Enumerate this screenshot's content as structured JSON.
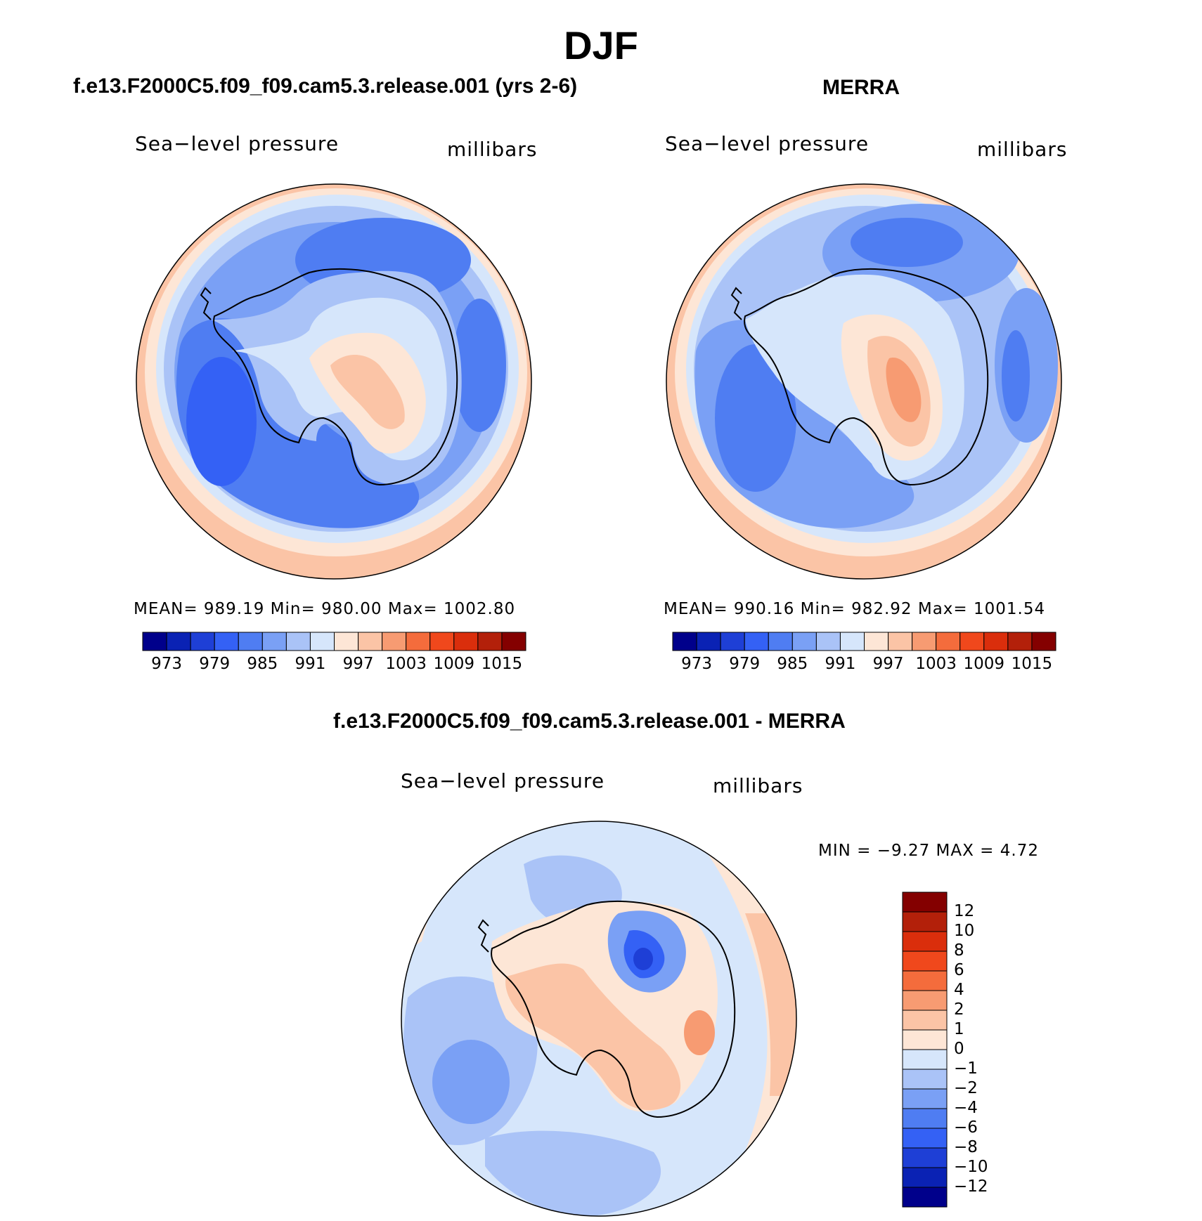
{
  "figure": {
    "season": "DJF",
    "panel1_title": "f.e13.F2000C5.f09_f09.cam5.3.release.001 (yrs 2-6)",
    "panel2_title": "MERRA",
    "diff_title": "f.e13.F2000C5.f09_f09.cam5.3.release.001 - MERRA"
  },
  "panels": [
    {
      "variable": "Sea−level pressure",
      "units": "millibars",
      "stats": "MEAN=  989.19    Min=  980.00    Max=  1002.80"
    },
    {
      "variable": "Sea−level pressure",
      "units": "millibars",
      "stats": "MEAN=  990.16    Min=  982.92    Max=  1001.54"
    },
    {
      "variable": "Sea−level pressure",
      "units": "millibars",
      "stats": "MIN =    −9.27  MAX =     4.72"
    }
  ],
  "colorbar_main": {
    "colors": [
      "#00008b",
      "#0a22b4",
      "#1e3fd6",
      "#3461f5",
      "#4f7df2",
      "#7aa0f5",
      "#aac3f7",
      "#d6e6fb",
      "#fde6d6",
      "#fbc4a6",
      "#f79b72",
      "#f46c3c",
      "#f0481c",
      "#da2e0c",
      "#b3200a",
      "#840000"
    ],
    "tick_labels": [
      "973",
      "979",
      "985",
      "991",
      "997",
      "1003",
      "1009",
      "1015"
    ]
  },
  "colorbar_diff": {
    "colors": [
      "#840000",
      "#b3200a",
      "#da2e0c",
      "#f0481c",
      "#f46c3c",
      "#f79b72",
      "#fbc4a6",
      "#fde6d6",
      "#d6e6fb",
      "#aac3f7",
      "#7aa0f5",
      "#4f7df2",
      "#3461f5",
      "#1e3fd6",
      "#0a22b4",
      "#00008b"
    ],
    "tick_labels": [
      "12",
      "10",
      "8",
      "6",
      "4",
      "2",
      "1",
      "0",
      "−1",
      "−2",
      "−4",
      "−6",
      "−8",
      "−10",
      "−12"
    ]
  }
}
